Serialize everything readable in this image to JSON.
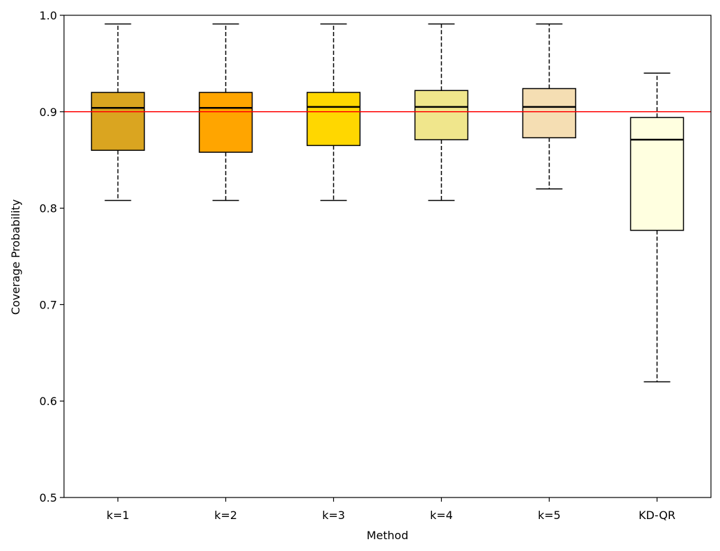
{
  "chart_data": {
    "type": "box",
    "title": "",
    "xlabel": "Method",
    "ylabel": "Coverage Probability",
    "ylim": [
      0.5,
      1.0
    ],
    "yticks": [
      "0.5",
      "0.6",
      "0.7",
      "0.8",
      "0.9",
      "1.0"
    ],
    "ytick_values": [
      0.5,
      0.6,
      0.7,
      0.8,
      0.9,
      1.0
    ],
    "reference_line": {
      "value": 0.9,
      "color": "#ff0000"
    },
    "categories": [
      "k=1",
      "k=2",
      "k=3",
      "k=4",
      "k=5",
      "KD-QR"
    ],
    "boxes": [
      {
        "label": "k=1",
        "whisker_low": 0.808,
        "q1": 0.86,
        "median": 0.904,
        "q3": 0.92,
        "whisker_high": 0.991,
        "color": "#daa520"
      },
      {
        "label": "k=2",
        "whisker_low": 0.808,
        "q1": 0.858,
        "median": 0.904,
        "q3": 0.92,
        "whisker_high": 0.991,
        "color": "#ffa500"
      },
      {
        "label": "k=3",
        "whisker_low": 0.808,
        "q1": 0.865,
        "median": 0.905,
        "q3": 0.92,
        "whisker_high": 0.991,
        "color": "#ffd700"
      },
      {
        "label": "k=4",
        "whisker_low": 0.808,
        "q1": 0.871,
        "median": 0.905,
        "q3": 0.922,
        "whisker_high": 0.991,
        "color": "#f0e68c"
      },
      {
        "label": "k=5",
        "whisker_low": 0.82,
        "q1": 0.873,
        "median": 0.905,
        "q3": 0.924,
        "whisker_high": 0.991,
        "color": "#f5deb3"
      },
      {
        "label": "KD-QR",
        "whisker_low": 0.62,
        "q1": 0.777,
        "median": 0.871,
        "q3": 0.894,
        "whisker_high": 0.94,
        "color": "#ffffe0"
      }
    ]
  }
}
